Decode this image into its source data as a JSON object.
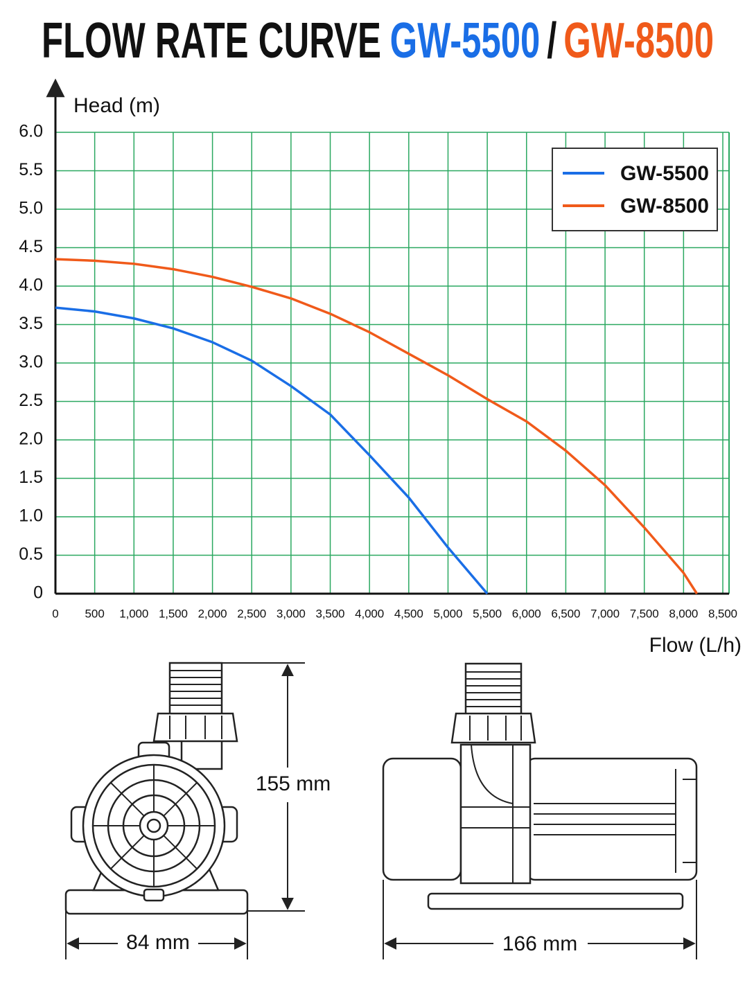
{
  "title_parts": [
    {
      "text": "FLOW RATE CURVE",
      "color": "#111111"
    },
    {
      "text": "GW-5500",
      "color": "#1a6ee6"
    },
    {
      "text": "/",
      "color": "#111111"
    },
    {
      "text": "GW-8500",
      "color": "#f05a1a"
    }
  ],
  "chart_data": {
    "type": "line",
    "y_label": "Head (m)",
    "x_label": "Flow (L/h)",
    "xlim": [
      0,
      8500
    ],
    "ylim": [
      0,
      6
    ],
    "xticks": [
      0,
      500,
      {
        "value": 1000,
        "label": "1,000"
      },
      {
        "value": 1500,
        "label": "1,500"
      },
      {
        "value": 2000,
        "label": "2,000"
      },
      {
        "value": 2500,
        "label": "2,500"
      },
      {
        "value": 3000,
        "label": "3,000"
      },
      {
        "value": 3500,
        "label": "3,500"
      },
      {
        "value": 4000,
        "label": "4,000"
      },
      {
        "value": 4500,
        "label": "4,500"
      },
      {
        "value": 5000,
        "label": "5,000"
      },
      {
        "value": 5500,
        "label": "5,500"
      },
      {
        "value": 6000,
        "label": "6,000"
      },
      {
        "value": 6500,
        "label": "6,500"
      },
      {
        "value": 7000,
        "label": "7,000"
      },
      {
        "value": 7500,
        "label": "7,500"
      },
      {
        "value": 8000,
        "label": "8,000"
      },
      {
        "value": 8500,
        "label": "8,500"
      }
    ],
    "yticks": [
      0,
      {
        "value": 0.5,
        "label": "0.5"
      },
      {
        "value": 1,
        "label": "1.0"
      },
      {
        "value": 1.5,
        "label": "1.5"
      },
      {
        "value": 2,
        "label": "2.0"
      },
      {
        "value": 2.5,
        "label": "2.5"
      },
      {
        "value": 3,
        "label": "3.0"
      },
      {
        "value": 3.5,
        "label": "3.5"
      },
      {
        "value": 4,
        "label": "4.0"
      },
      {
        "value": 4.5,
        "label": "4.5"
      },
      {
        "value": 5,
        "label": "5.0"
      },
      {
        "value": 5.5,
        "label": "5.5"
      },
      {
        "value": 6,
        "label": "6.0"
      }
    ],
    "grid": true,
    "grid_color": "#2aa860",
    "legend": "top-right",
    "series": [
      {
        "name": "GW-5500",
        "color": "#1a6ee6",
        "x": [
          0,
          500,
          1000,
          1500,
          2000,
          2500,
          3000,
          3500,
          4000,
          4500,
          5000,
          5500
        ],
        "values": [
          3.72,
          3.67,
          3.58,
          3.45,
          3.27,
          3.03,
          2.7,
          2.33,
          1.8,
          1.25,
          0.6,
          0
        ]
      },
      {
        "name": "GW-8500",
        "color": "#f05a1a",
        "x": [
          0,
          500,
          1000,
          1500,
          2000,
          2500,
          3000,
          3500,
          4000,
          4500,
          5000,
          5500,
          6000,
          6500,
          7000,
          7500,
          8000,
          8170
        ],
        "values": [
          4.35,
          4.33,
          4.29,
          4.22,
          4.12,
          3.99,
          3.84,
          3.64,
          3.4,
          3.12,
          2.84,
          2.53,
          2.24,
          1.86,
          1.41,
          0.86,
          0.27,
          0
        ]
      }
    ]
  },
  "dimensions": {
    "height": "155 mm",
    "width": "84 mm",
    "length": "166 mm"
  }
}
